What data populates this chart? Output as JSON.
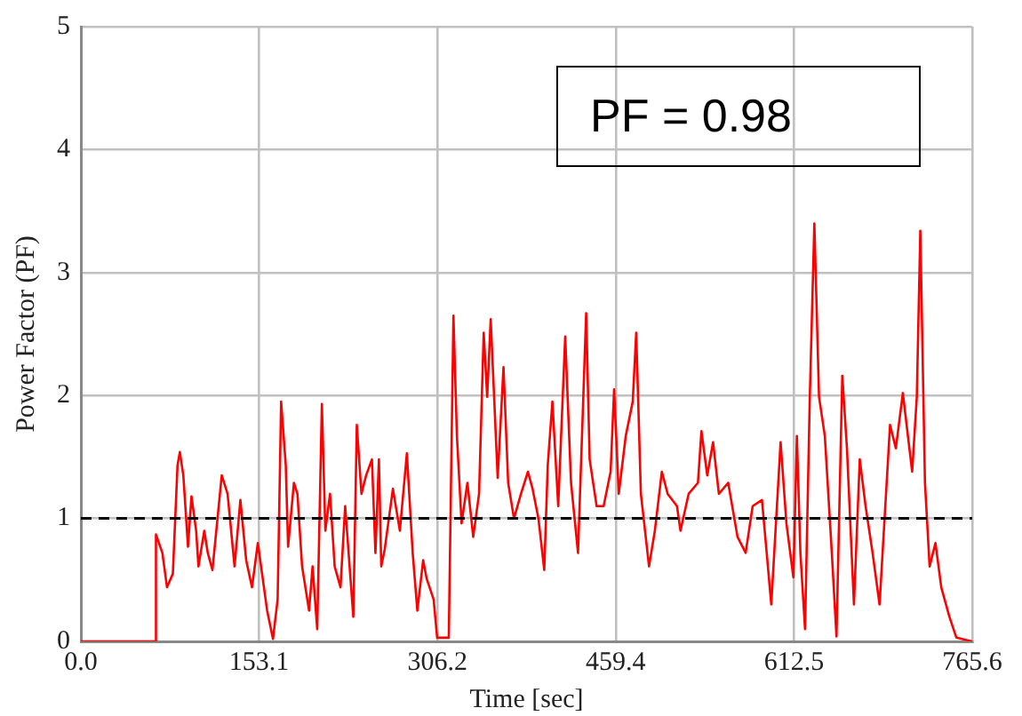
{
  "chart_data": {
    "type": "line",
    "xlabel": "Time [sec]",
    "ylabel": "Power Factor (PF)",
    "annotations": [
      "PF = 0.98"
    ],
    "xlim": [
      0,
      765.6
    ],
    "ylim": [
      0,
      5
    ],
    "xticks": [
      {
        "value": 0,
        "label": "0.0"
      },
      153.1,
      306.2,
      459.4,
      612.5,
      765.6
    ],
    "yticks": [
      0,
      1,
      2,
      3,
      4,
      5
    ],
    "grid": true,
    "legend": false,
    "marker": "none",
    "line_style": "solid",
    "ref_lines": [
      {
        "axis": "y",
        "value": 1,
        "color": "#000000",
        "line_style": "dashed"
      }
    ],
    "series": [
      {
        "color": "#ff0000",
        "x": [
          0,
          64,
          64.5,
          70,
          74,
          79,
          83,
          85,
          88,
          92,
          95,
          99,
          101,
          106,
          109,
          113,
          121,
          126,
          132,
          137,
          142,
          147,
          152,
          160,
          165,
          169,
          172,
          176,
          178,
          183,
          186,
          190,
          196,
          199,
          203,
          207,
          210,
          214,
          218,
          223,
          227,
          234,
          237,
          241,
          245,
          250,
          253,
          256,
          258,
          261,
          268,
          274,
          280,
          285,
          289,
          294,
          297,
          303,
          306,
          316,
          320,
          323,
          327,
          332,
          337,
          342,
          346,
          349,
          352,
          358,
          363,
          367,
          372,
          378,
          384,
          388,
          393,
          398,
          401,
          405,
          410,
          416,
          421,
          427,
          434,
          437,
          443,
          449,
          455,
          458,
          462,
          468,
          474,
          477,
          481,
          488,
          493,
          499,
          504,
          512,
          515,
          522,
          530,
          533,
          538,
          543,
          548,
          556,
          564,
          571,
          577,
          585,
          593,
          601,
          606,
          612,
          615,
          618,
          622,
          626,
          630,
          634,
          639,
          645,
          649,
          654,
          658,
          664,
          669,
          674,
          680,
          686,
          695,
          700,
          706,
          714,
          718,
          721,
          725,
          729,
          734,
          739,
          746,
          752,
          765.6
        ],
        "values": [
          0,
          0,
          0.87,
          0.72,
          0.44,
          0.55,
          1.43,
          1.54,
          1.35,
          0.77,
          1.18,
          0.9,
          0.61,
          0.9,
          0.72,
          0.58,
          1.35,
          1.2,
          0.61,
          1.15,
          0.66,
          0.44,
          0.8,
          0.25,
          0.02,
          0.34,
          1.95,
          1.43,
          0.77,
          1.29,
          1.2,
          0.61,
          0.25,
          0.61,
          0.1,
          1.93,
          0.9,
          1.2,
          0.61,
          0.44,
          1.1,
          0.2,
          1.76,
          1.2,
          1.35,
          1.48,
          0.72,
          1.48,
          0.61,
          0.75,
          1.24,
          0.9,
          1.53,
          0.72,
          0.25,
          0.66,
          0.51,
          0.34,
          0.03,
          0.03,
          2.65,
          1.67,
          0.96,
          1.29,
          0.85,
          1.2,
          2.51,
          1.99,
          2.62,
          1.33,
          2.23,
          1.29,
          1.0,
          1.2,
          1.38,
          1.24,
          1.0,
          0.58,
          1.43,
          1.95,
          1.1,
          2.48,
          1.29,
          0.72,
          2.67,
          1.48,
          1.1,
          1.1,
          1.38,
          2.05,
          1.2,
          1.67,
          1.95,
          2.51,
          1.2,
          0.61,
          0.9,
          1.38,
          1.2,
          1.1,
          0.9,
          1.2,
          1.29,
          1.71,
          1.35,
          1.62,
          1.2,
          1.29,
          0.85,
          0.72,
          1.1,
          1.15,
          0.3,
          1.62,
          0.96,
          0.52,
          1.67,
          0.72,
          0.1,
          1.95,
          3.4,
          1.99,
          1.67,
          0.72,
          0.04,
          2.16,
          1.57,
          0.3,
          1.48,
          1.1,
          0.72,
          0.3,
          1.76,
          1.57,
          2.02,
          1.38,
          1.99,
          3.34,
          1.29,
          0.61,
          0.8,
          0.44,
          0.2,
          0.03,
          0
        ]
      }
    ]
  }
}
